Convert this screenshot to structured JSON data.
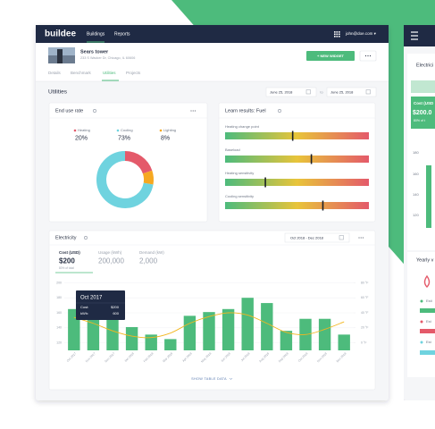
{
  "nav": {
    "logo": "buildee",
    "links": [
      "Buildings",
      "Reports"
    ],
    "user": "john@doe.com ▾"
  },
  "building": {
    "name": "Sears tower",
    "address": "233 S Wacker Dr, Chicago, IL 60606"
  },
  "actions": {
    "new_widget": "+ NEW WIDGET"
  },
  "tabs": [
    "Details",
    "Benchmark",
    "Utilities",
    "Projects"
  ],
  "section": {
    "title": "Utilities",
    "date_from": "June 25, 2018",
    "date_separator": "to",
    "date_to": "June 25, 2018"
  },
  "end_use": {
    "type": "pie",
    "title": "End use rate",
    "categories": [
      "Heating",
      "Cooling",
      "Lighting"
    ],
    "values": [
      20,
      73,
      8
    ],
    "value_labels": [
      "20%",
      "73%",
      "8%"
    ],
    "colors": [
      "#e45a6a",
      "#6fd3df",
      "#f6a821"
    ]
  },
  "learn": {
    "title": "Learn results: Fuel",
    "xlim": [
      0,
      100
    ],
    "items": [
      {
        "label": "Heating change point",
        "marker": 47
      },
      {
        "label": "Baseload",
        "marker": 60
      },
      {
        "label": "Heating sensitivity",
        "marker": 28
      },
      {
        "label": "Cooling sensitivity",
        "marker": 68
      }
    ]
  },
  "electricity": {
    "title": "Electricity",
    "range": "Oct 2018 - Dec 2018",
    "stats": [
      {
        "label": "Cost (USD)",
        "value": "$200",
        "note": "80% of total"
      },
      {
        "label": "Usage (kWh)",
        "value": "200,000"
      },
      {
        "label": "Demand (kW)",
        "value": "2,000"
      }
    ],
    "chart": {
      "type": "bar",
      "categories": [
        "Oct 2017",
        "Nov 2017",
        "Dec 2017",
        "Jan 2018",
        "Feb 2018",
        "Mar 2018",
        "Apr 2018",
        "May 2018",
        "Jun 2018",
        "Jul 2018",
        "Aug 2018",
        "Sep 2018",
        "Oct 2018",
        "Nov 2018",
        "Dec 2018"
      ],
      "series": [
        {
          "color": "#4dbb7c",
          "values": [
            165,
            181,
            172,
            141,
            131,
            125,
            156,
            161,
            165,
            180,
            173,
            136,
            152,
            152,
            131
          ]
        },
        {
          "color": "#f3b61f",
          "axis": "y2",
          "values": [
            34,
            26,
            16,
            9,
            7,
            13,
            26,
            35,
            40,
            37,
            26,
            14,
            11,
            18,
            28
          ]
        }
      ],
      "ylim": [
        110,
        210
      ],
      "yticks": [
        120,
        140,
        160,
        180,
        200
      ],
      "y2lim": [
        -10,
        90
      ],
      "y2ticks": [
        {
          "value": 0,
          "label": "0 °F"
        },
        {
          "value": 20,
          "label": "20 °F"
        },
        {
          "value": 40,
          "label": "40 °F"
        },
        {
          "value": 60,
          "label": "60 °F"
        },
        {
          "value": 80,
          "label": "80 °F"
        }
      ],
      "grid": true,
      "tooltip": {
        "title": "Oct 2017",
        "rows": [
          {
            "label": "Cost:",
            "value": "$200"
          },
          {
            "label": "kWh:",
            "value": "600"
          }
        ]
      }
    },
    "footer_link": "SHOW TABLE DATA"
  },
  "side": {
    "title": "Electrici",
    "stat_label": "Cost (USD",
    "stat_value": "$200.0",
    "stat_note": "80% of t",
    "axis_labels": [
      "180",
      "160",
      "140",
      "120"
    ],
    "section": "Yearly v",
    "legend": [
      "Esti",
      "Est",
      "Est"
    ]
  }
}
